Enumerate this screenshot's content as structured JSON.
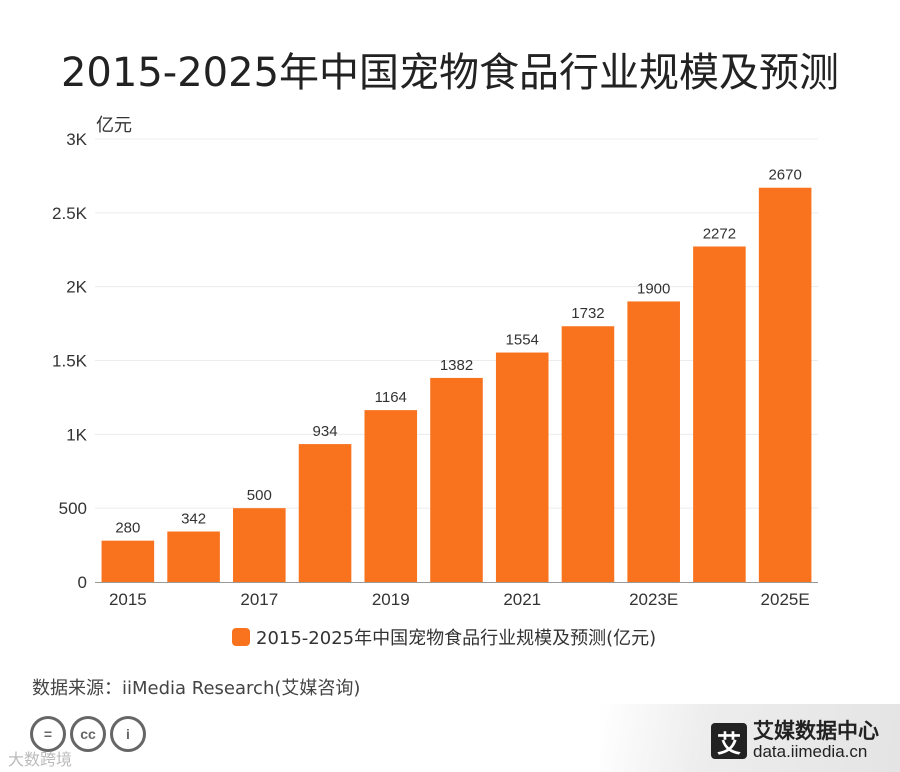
{
  "title": "2015-2025年中国宠物食品行业规模及预测",
  "chart_data": {
    "type": "bar",
    "title": "2015-2025年中国宠物食品行业规模及预测",
    "ylabel": "亿元",
    "xlabel": "",
    "categories": [
      "2015",
      "2016",
      "2017",
      "2018",
      "2019",
      "2020",
      "2021",
      "2022",
      "2023E",
      "2024E",
      "2025E"
    ],
    "x_tick_labels": [
      "2015",
      "",
      "2017",
      "",
      "2019",
      "",
      "2021",
      "",
      "2023E",
      "",
      "2025E"
    ],
    "values": [
      280,
      342,
      500,
      934,
      1164,
      1382,
      1554,
      1732,
      1900,
      2272,
      2670
    ],
    "ylim": [
      0,
      3000
    ],
    "yticks": [
      0,
      500,
      1000,
      1500,
      2000,
      2500,
      3000
    ],
    "ytick_labels": [
      "0",
      "500",
      "1K",
      "1.5K",
      "2K",
      "2.5K",
      "3K"
    ],
    "series_name": "2015-2025年中国宠物食品行业规模及预测(亿元)",
    "color": "#F9731F",
    "grid": true,
    "legend": "bottom"
  },
  "source": "数据来源：iiMedia Research(艾媒咨询)",
  "cc_icons": [
    {
      "icon": "equals-icon",
      "text": "="
    },
    {
      "icon": "cc-icon",
      "text": "cc"
    },
    {
      "icon": "person-icon",
      "text": "i"
    }
  ],
  "watermark": "大数跨境",
  "brand": {
    "name": "艾媒数据中心",
    "url": "data.iimedia.cn",
    "logo_char": "艾"
  }
}
